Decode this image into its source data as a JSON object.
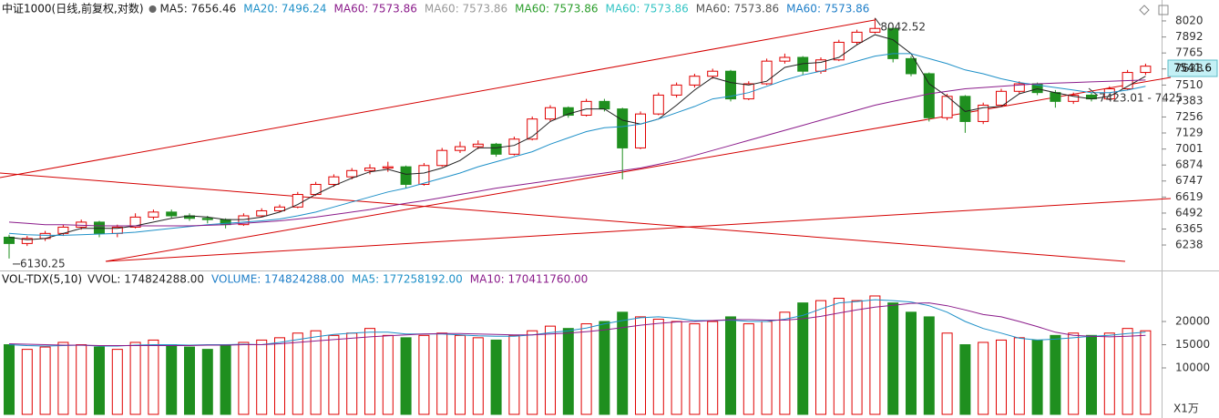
{
  "chart_data": [
    {
      "type": "candlestick",
      "title": "中证1000(日线,前复权,对数)",
      "up_color": "#e00000",
      "down_color": "#1f8f1f",
      "ylim": [
        6050,
        8150
      ],
      "yticks": [
        8020,
        7892,
        7765,
        7638,
        7510,
        7383,
        7256,
        7129,
        7001,
        6874,
        6747,
        6619,
        6492,
        6365,
        6238
      ],
      "ohlc": [
        [
          6300,
          6320,
          6130.25,
          6250
        ],
        [
          6250,
          6310,
          6230,
          6290
        ],
        [
          6290,
          6350,
          6270,
          6330
        ],
        [
          6330,
          6400,
          6310,
          6380
        ],
        [
          6380,
          6440,
          6360,
          6420
        ],
        [
          6420,
          6430,
          6300,
          6330
        ],
        [
          6330,
          6400,
          6300,
          6380
        ],
        [
          6380,
          6490,
          6370,
          6460
        ],
        [
          6460,
          6520,
          6440,
          6500
        ],
        [
          6500,
          6520,
          6450,
          6470
        ],
        [
          6470,
          6490,
          6430,
          6450
        ],
        [
          6450,
          6470,
          6410,
          6440
        ],
        [
          6440,
          6450,
          6370,
          6400
        ],
        [
          6400,
          6490,
          6390,
          6470
        ],
        [
          6470,
          6530,
          6460,
          6510
        ],
        [
          6510,
          6560,
          6500,
          6540
        ],
        [
          6540,
          6660,
          6530,
          6640
        ],
        [
          6640,
          6740,
          6630,
          6720
        ],
        [
          6720,
          6800,
          6700,
          6780
        ],
        [
          6780,
          6850,
          6760,
          6830
        ],
        [
          6830,
          6880,
          6800,
          6850
        ],
        [
          6850,
          6900,
          6820,
          6860
        ],
        [
          6860,
          6870,
          6690,
          6720
        ],
        [
          6720,
          6890,
          6710,
          6870
        ],
        [
          6870,
          7010,
          6860,
          6990
        ],
        [
          6990,
          7060,
          6970,
          7020
        ],
        [
          7020,
          7070,
          7000,
          7040
        ],
        [
          7040,
          7050,
          6940,
          6960
        ],
        [
          6960,
          7100,
          6950,
          7080
        ],
        [
          7080,
          7260,
          7070,
          7240
        ],
        [
          7240,
          7350,
          7220,
          7330
        ],
        [
          7330,
          7340,
          7250,
          7270
        ],
        [
          7270,
          7400,
          7260,
          7380
        ],
        [
          7380,
          7400,
          7300,
          7320
        ],
        [
          7320,
          7330,
          6760,
          7010
        ],
        [
          7010,
          7300,
          7000,
          7280
        ],
        [
          7280,
          7450,
          7270,
          7430
        ],
        [
          7430,
          7530,
          7410,
          7510
        ],
        [
          7510,
          7600,
          7490,
          7580
        ],
        [
          7580,
          7640,
          7560,
          7620
        ],
        [
          7620,
          7630,
          7380,
          7400
        ],
        [
          7400,
          7540,
          7390,
          7520
        ],
        [
          7520,
          7720,
          7510,
          7700
        ],
        [
          7700,
          7760,
          7680,
          7730
        ],
        [
          7730,
          7740,
          7590,
          7620
        ],
        [
          7620,
          7730,
          7600,
          7710
        ],
        [
          7710,
          7870,
          7700,
          7850
        ],
        [
          7850,
          7950,
          7830,
          7930
        ],
        [
          7930,
          8042.52,
          7920,
          7960
        ],
        [
          7960,
          7970,
          7690,
          7720
        ],
        [
          7720,
          7740,
          7580,
          7600
        ],
        [
          7600,
          7610,
          7220,
          7250
        ],
        [
          7250,
          7440,
          7230,
          7420
        ],
        [
          7420,
          7430,
          7130,
          7220
        ],
        [
          7220,
          7370,
          7200,
          7350
        ],
        [
          7350,
          7480,
          7340,
          7460
        ],
        [
          7460,
          7540,
          7440,
          7520
        ],
        [
          7520,
          7530,
          7430,
          7450
        ],
        [
          7450,
          7470,
          7330,
          7380
        ],
        [
          7380,
          7450,
          7360,
          7430
        ],
        [
          7430,
          7450,
          7380,
          7400
        ],
        [
          7400,
          7500,
          7390,
          7480
        ],
        [
          7480,
          7630,
          7470,
          7610
        ],
        [
          7610,
          7680,
          7590,
          7660
        ]
      ],
      "series": [
        {
          "name": "MA5: 7656.46",
          "color": "#222222",
          "values": [
            6300,
            6280,
            6290,
            6330,
            6370,
            6370,
            6370,
            6390,
            6420,
            6450,
            6470,
            6460,
            6440,
            6440,
            6460,
            6500,
            6560,
            6640,
            6710,
            6770,
            6820,
            6840,
            6800,
            6810,
            6850,
            6910,
            7010,
            7010,
            7030,
            7100,
            7220,
            7280,
            7320,
            7320,
            7230,
            7200,
            7240,
            7350,
            7470,
            7570,
            7530,
            7510,
            7540,
            7650,
            7680,
            7690,
            7730,
            7830,
            7910,
            7870,
            7760,
            7520,
            7420,
            7300,
            7330,
            7340,
            7440,
            7480,
            7450,
            7420,
            7400,
            7420,
            7500,
            7580
          ]
        },
        {
          "name": "MA20: 7496.24",
          "color": "#1e90c8",
          "values": [
            6330,
            6320,
            6315,
            6315,
            6320,
            6325,
            6330,
            6340,
            6355,
            6370,
            6385,
            6400,
            6410,
            6420,
            6430,
            6445,
            6470,
            6500,
            6540,
            6580,
            6620,
            6660,
            6690,
            6730,
            6770,
            6810,
            6860,
            6900,
            6940,
            6980,
            7040,
            7090,
            7140,
            7170,
            7180,
            7200,
            7240,
            7290,
            7340,
            7400,
            7420,
            7450,
            7500,
            7550,
            7590,
            7620,
            7660,
            7700,
            7740,
            7760,
            7760,
            7720,
            7680,
            7630,
            7600,
            7560,
            7530,
            7510,
            7490,
            7470,
            7450,
            7450,
            7470,
            7500
          ]
        },
        {
          "name": "MA60: 7573.86",
          "color": "#8b1c8b",
          "values": [
            6420,
            6410,
            6400,
            6400,
            6395,
            6390,
            6390,
            6390,
            6390,
            6390,
            6390,
            6395,
            6400,
            6410,
            6420,
            6430,
            6445,
            6460,
            6480,
            6500,
            6520,
            6545,
            6570,
            6590,
            6615,
            6640,
            6665,
            6690,
            6710,
            6730,
            6750,
            6770,
            6790,
            6810,
            6830,
            6850,
            6880,
            6910,
            6950,
            6990,
            7030,
            7070,
            7110,
            7150,
            7190,
            7230,
            7270,
            7310,
            7350,
            7380,
            7410,
            7440,
            7460,
            7480,
            7490,
            7500,
            7510,
            7520,
            7525,
            7530,
            7535,
            7540,
            7545,
            7550
          ]
        },
        {
          "name": "MA60: 7573.86",
          "color": "#999999"
        },
        {
          "name": "MA60: 7573.86",
          "color": "#2a9d2a"
        },
        {
          "name": "MA60: 7573.86",
          "color": "#33c4c4"
        },
        {
          "name": "MA60: 7573.86",
          "color": "#555555"
        },
        {
          "name": "MA60: 7573.86",
          "color": "#1e7ec8"
        }
      ],
      "annotations": [
        "8042.52",
        "6130.25",
        "7423.01 - 7425",
        "7541.6"
      ]
    },
    {
      "type": "bar",
      "title": "VOL-TDX(5,10)",
      "unit": "X1万",
      "ylim": [
        0,
        30400
      ],
      "yticks": [
        20000,
        15000,
        10000
      ],
      "values": [
        15000,
        14000,
        14500,
        15500,
        15000,
        14500,
        14000,
        15500,
        16000,
        15000,
        14500,
        14000,
        15000,
        15500,
        16000,
        16500,
        17500,
        18000,
        17000,
        17500,
        18500,
        17000,
        16500,
        17000,
        17500,
        17000,
        16500,
        16000,
        17000,
        18000,
        19000,
        18500,
        19500,
        20000,
        22000,
        21000,
        20500,
        20000,
        19500,
        20000,
        21000,
        19500,
        20000,
        22000,
        24000,
        24500,
        25000,
        24500,
        25500,
        24000,
        22000,
        21000,
        17500,
        15000,
        15500,
        16000,
        16500,
        16000,
        17000,
        17500,
        17000,
        17500,
        18500,
        18000
      ],
      "series": [
        {
          "name": "VVOL: 174824288.00",
          "color": "#222222"
        },
        {
          "name": "VOLUME: 174824288.00",
          "color": "#1e7ec8"
        },
        {
          "name": "MA5: 177258192.00",
          "color": "#1e90c8",
          "values": [
            15000,
            14800,
            14700,
            14800,
            14900,
            14700,
            14700,
            14900,
            15000,
            15000,
            14900,
            15000,
            15000,
            15100,
            15000,
            15500,
            16100,
            16700,
            17200,
            17500,
            17700,
            17700,
            17300,
            17300,
            17300,
            17100,
            16900,
            16800,
            16800,
            17100,
            17600,
            18000,
            18600,
            19500,
            20200,
            20800,
            21000,
            20700,
            20200,
            20200,
            20300,
            20000,
            20000,
            20500,
            21300,
            22700,
            24000,
            24300,
            24700,
            24500,
            24200,
            23400,
            22000,
            20000,
            18500,
            17500,
            16400,
            16000,
            16200,
            16500,
            16800,
            17000,
            17400,
            17700
          ]
        },
        {
          "name": "MA10: 170411760.00",
          "color": "#8b1c8b",
          "values": [
            15200,
            15100,
            15000,
            14900,
            14900,
            14800,
            14800,
            14800,
            14800,
            14800,
            14800,
            14900,
            14900,
            15000,
            15000,
            15200,
            15500,
            15800,
            16100,
            16400,
            16700,
            16900,
            17100,
            17300,
            17400,
            17400,
            17300,
            17200,
            17100,
            17100,
            17300,
            17500,
            17800,
            18200,
            18700,
            19200,
            19600,
            19900,
            20000,
            20200,
            20400,
            20400,
            20300,
            20300,
            20600,
            21100,
            21800,
            22500,
            23100,
            23500,
            23900,
            24000,
            23400,
            22500,
            21500,
            21000,
            20000,
            18900,
            17700,
            17000,
            16800,
            16700,
            16800,
            17000
          ]
        }
      ]
    }
  ]
}
